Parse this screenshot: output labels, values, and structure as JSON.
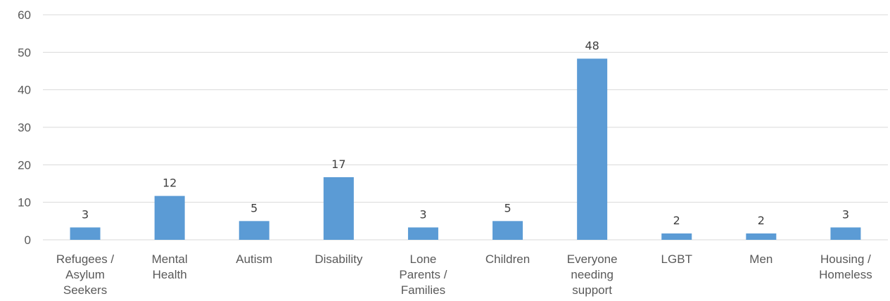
{
  "chart_data": {
    "type": "bar",
    "categories": [
      [
        "Refugees /",
        "Asylum",
        "Seekers"
      ],
      [
        "Mental",
        "Health"
      ],
      [
        "Autism"
      ],
      [
        "Disability"
      ],
      [
        "Lone",
        "Parents /",
        "Families"
      ],
      [
        "Children"
      ],
      [
        "Everyone",
        "needing",
        "support"
      ],
      [
        "LGBT"
      ],
      [
        "Men"
      ],
      [
        "Housing /",
        "Homeless"
      ]
    ],
    "values": [
      3.3,
      11.7,
      5.0,
      16.7,
      3.3,
      5.0,
      48.3,
      1.7,
      1.7,
      3.3
    ],
    "data_labels": [
      "3",
      "12",
      "5",
      "17",
      "3",
      "5",
      "48",
      "2",
      "2",
      "3"
    ],
    "yticks": [
      "0",
      "10",
      "20",
      "30",
      "40",
      "50",
      "60"
    ],
    "ylim": [
      0,
      60
    ],
    "grid": true,
    "title": "",
    "xlabel": "",
    "ylabel": "",
    "colors": {
      "bar": "#5b9bd5",
      "grid": "#d9d9d9",
      "text": "#595959"
    }
  }
}
